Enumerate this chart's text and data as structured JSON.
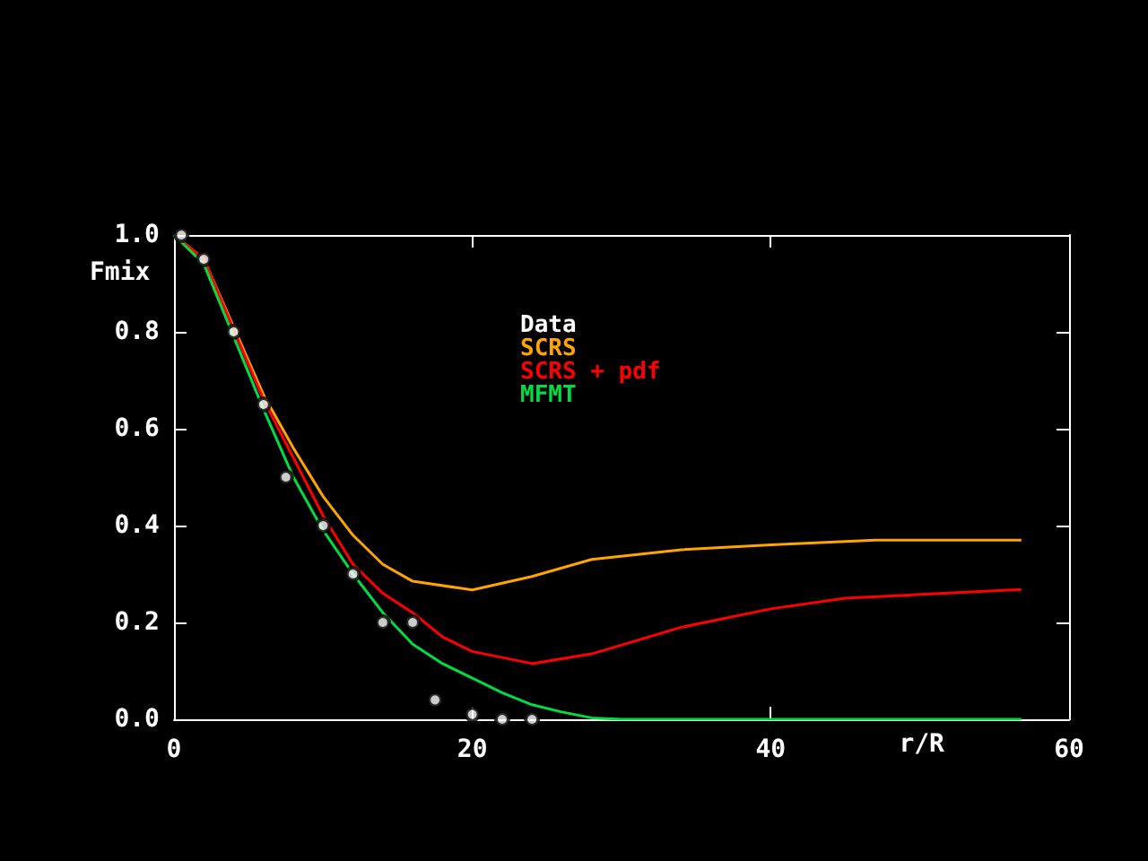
{
  "chart_data": {
    "type": "line",
    "xlabel": "r/R",
    "ylabel": "Fmix",
    "xlim": [
      0,
      60
    ],
    "xticks": [
      0,
      20,
      40,
      60
    ],
    "ylim": [
      0,
      1
    ],
    "yticks": [
      {
        "value": 0,
        "label": "0.0"
      },
      {
        "value": 0.2,
        "label": "0.2"
      },
      {
        "value": 0.4,
        "label": "0.4"
      },
      {
        "value": 0.6,
        "label": "0.6"
      },
      {
        "value": 0.8,
        "label": "0.8"
      },
      {
        "value": 1,
        "label": "1.0"
      }
    ],
    "grid": false,
    "legend": "top",
    "line_style": "solid",
    "series": [
      {
        "name": "Data",
        "type": "scatter",
        "marker": "circle",
        "color": "#ffffff",
        "x": [
          0.5,
          2,
          4,
          6,
          7.5,
          10,
          12,
          14,
          16,
          17.5,
          20,
          22,
          24
        ],
        "values": [
          1.0,
          0.95,
          0.8,
          0.65,
          0.5,
          0.4,
          0.3,
          0.2,
          0.2,
          0.04,
          0.01,
          0.0,
          0.0
        ]
      },
      {
        "name": "SCRS",
        "marker": "none",
        "color": "#ffa500",
        "x": [
          0,
          2,
          4,
          6,
          8,
          10,
          12,
          14,
          16,
          20,
          24,
          28,
          34,
          40,
          47,
          56.8
        ],
        "values": [
          1.0,
          0.95,
          0.81,
          0.67,
          0.56,
          0.46,
          0.38,
          0.32,
          0.285,
          0.267,
          0.295,
          0.33,
          0.35,
          0.36,
          0.37,
          0.37
        ]
      },
      {
        "name": "SCRS + pdf",
        "marker": "none",
        "color": "#ff0000",
        "x": [
          0,
          2,
          4,
          6,
          8,
          10,
          12,
          14,
          16,
          18,
          20,
          24,
          28,
          34,
          40,
          45,
          56.8
        ],
        "values": [
          1.0,
          0.95,
          0.805,
          0.66,
          0.54,
          0.42,
          0.32,
          0.26,
          0.22,
          0.17,
          0.14,
          0.115,
          0.135,
          0.19,
          0.228,
          0.25,
          0.268
        ]
      },
      {
        "name": "MFMT",
        "marker": "none",
        "color": "#00dd44",
        "x": [
          0,
          2,
          4,
          6,
          8,
          10,
          12,
          14,
          16,
          18,
          20,
          22,
          24,
          26,
          28,
          30,
          56.8
        ],
        "values": [
          1.0,
          0.94,
          0.79,
          0.64,
          0.5,
          0.39,
          0.3,
          0.22,
          0.155,
          0.115,
          0.085,
          0.055,
          0.03,
          0.015,
          0.003,
          0,
          0
        ]
      }
    ]
  }
}
